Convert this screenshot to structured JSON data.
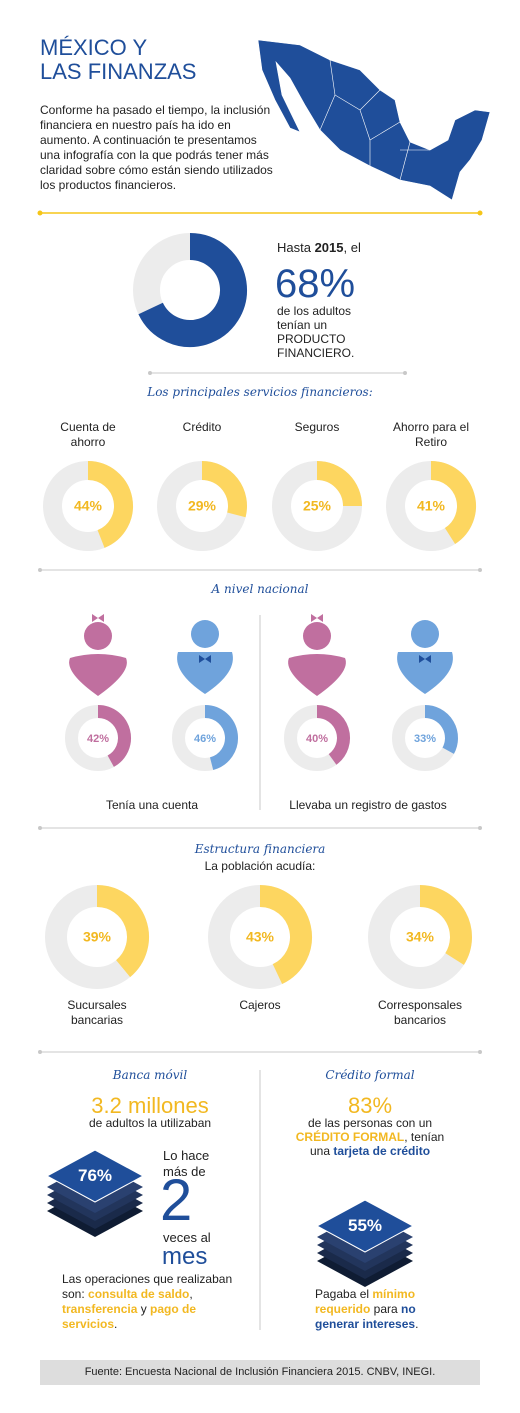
{
  "header": {
    "title_lines": [
      "MÉXICO Y",
      "LAS FINANZAS"
    ],
    "intro": "Conforme ha pasado el tiempo, la inclusión financiera en nuestro país ha ido en aumento. A continuación te presentamos una infografía con la que podrás tener más claridad sobre cómo están siendo utilizados los productos financieros."
  },
  "highlight": {
    "lead": [
      "Hasta ",
      "2015",
      ", el"
    ],
    "value": 68,
    "value_label": "68%",
    "text": "de los adultos tenían un PRODUCTO FINANCIERO."
  },
  "services": {
    "heading": "Los principales servicios financieros:",
    "items": [
      {
        "label": "Cuenta de ahorro",
        "value": 44,
        "value_label": "44%"
      },
      {
        "label": "Crédito",
        "value": 29,
        "value_label": "29%"
      },
      {
        "label": "Seguros",
        "value": 25,
        "value_label": "25%"
      },
      {
        "label": "Ahorro para el Retiro",
        "value": 41,
        "value_label": "41%"
      }
    ]
  },
  "national": {
    "heading": "A nivel nacional",
    "groups": [
      {
        "caption": "Tenía una cuenta",
        "women": {
          "value": 42,
          "value_label": "42%"
        },
        "men": {
          "value": 46,
          "value_label": "46%"
        }
      },
      {
        "caption": "Llevaba un registro de gastos",
        "women": {
          "value": 40,
          "value_label": "40%"
        },
        "men": {
          "value": 33,
          "value_label": "33%"
        }
      }
    ]
  },
  "structure": {
    "heading": "Estructura financiera",
    "subheading": "La población acudía:",
    "items": [
      {
        "label": "Sucursales bancarias",
        "value": 39,
        "value_label": "39%"
      },
      {
        "label": "Cajeros",
        "value": 43,
        "value_label": "43%"
      },
      {
        "label": "Corresponsales bancarios",
        "value": 34,
        "value_label": "34%"
      }
    ]
  },
  "mobile": {
    "heading": "Banca móvil",
    "amount": "3.2 millones",
    "amount_text": "de adultos la utilizaban",
    "share": "76%",
    "frequency": [
      "Lo hace más de",
      "2",
      "veces al",
      "mes"
    ],
    "operations": [
      "Las operaciones que realizaban son: ",
      "consulta de saldo",
      ", ",
      "transferencia",
      " y ",
      "pago de servicios",
      "."
    ]
  },
  "credit": {
    "heading": "Crédito formal",
    "share": "83%",
    "text": [
      "de las personas con un ",
      "CRÉDITO FORMAL",
      ", tenían una ",
      "tarjeta de crédito"
    ],
    "stack": "55%",
    "payment": [
      "Pagaba el ",
      "mínimo requerido",
      " para ",
      "no generar intereses",
      "."
    ]
  },
  "footer": {
    "source": "Fuente: Encuesta Nacional de Inclusión Financiera 2015. CNBV, INEGI."
  }
}
